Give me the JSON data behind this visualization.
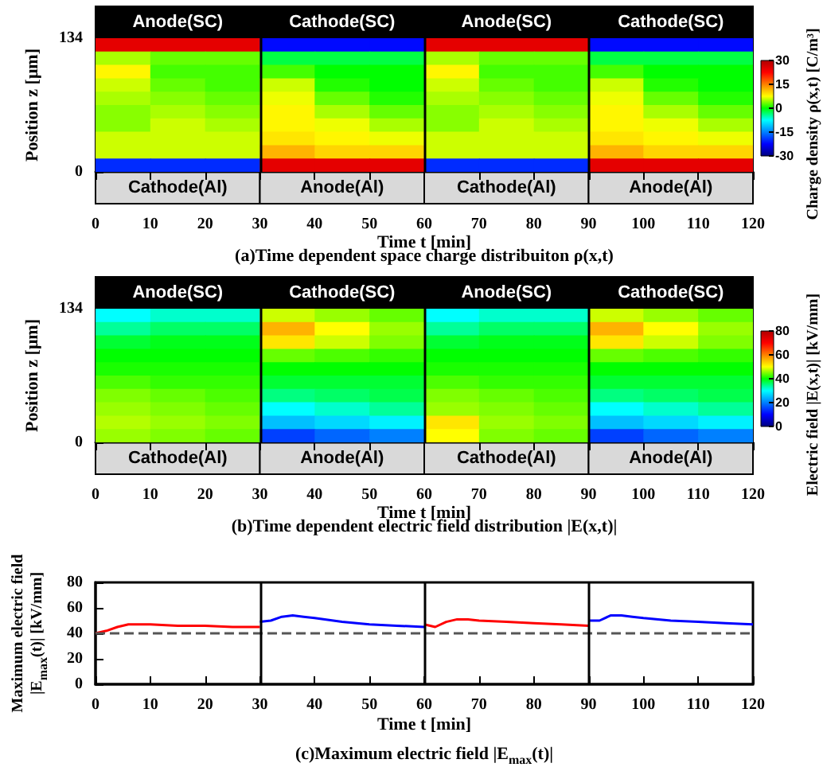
{
  "chart_data": [
    {
      "type": "heatmap",
      "title": "(a)Time dependent space charge distribuiton ρ(x,t)",
      "xlabel": "Time t [min]",
      "ylabel": "Position z [μm]",
      "clabel": "Charge density ρ(x,t) [C/m³]",
      "annotations": [
        "Anode(SC)",
        "Cathode(SC)",
        "Anode(SC)",
        "Cathode(SC)",
        "Cathode(Al)",
        "Anode(Al)",
        "Cathode(Al)",
        "Anode(Al)"
      ],
      "x": [
        5,
        15,
        25,
        35,
        45,
        55,
        65,
        75,
        85,
        95,
        105,
        115
      ],
      "cells": [
        [
          25,
          25,
          25,
          -22,
          -22,
          -22,
          25,
          25,
          25,
          -22,
          -22,
          -22
        ],
        [
          5,
          3,
          3,
          -2,
          -2,
          -2,
          5,
          3,
          3,
          -2,
          -2,
          -2
        ],
        [
          8,
          2,
          2,
          2,
          0,
          0,
          8,
          2,
          2,
          2,
          0,
          0
        ],
        [
          6,
          3,
          2,
          6,
          1,
          0,
          6,
          3,
          2,
          6,
          1,
          0
        ],
        [
          5,
          4,
          3,
          7,
          3,
          1,
          5,
          4,
          3,
          7,
          3,
          1
        ],
        [
          4,
          5,
          4,
          8,
          5,
          3,
          4,
          5,
          4,
          8,
          5,
          3
        ],
        [
          4,
          6,
          5,
          8,
          7,
          5,
          4,
          6,
          5,
          8,
          7,
          5
        ],
        [
          6,
          6,
          6,
          9,
          8,
          7,
          6,
          6,
          6,
          9,
          8,
          7
        ],
        [
          6,
          6,
          6,
          12,
          10,
          10,
          6,
          6,
          6,
          12,
          10,
          10
        ],
        [
          -20,
          -20,
          -20,
          25,
          25,
          25,
          -20,
          -20,
          -20,
          25,
          25,
          25
        ]
      ],
      "clim": [
        -30,
        30
      ],
      "cticks": [
        30,
        15,
        0,
        -15,
        -30
      ],
      "xlim": [
        0,
        120
      ],
      "xticks": [
        0,
        10,
        20,
        30,
        40,
        50,
        60,
        70,
        80,
        90,
        100,
        110,
        120
      ],
      "ylim": [
        0,
        134
      ],
      "yticks": [
        0,
        134
      ],
      "ref_lines": [
        {
          "axis": "x",
          "value": 30,
          "color": "#000000"
        },
        {
          "axis": "x",
          "value": 60,
          "color": "#000000"
        },
        {
          "axis": "x",
          "value": 90,
          "color": "#000000"
        }
      ]
    },
    {
      "type": "heatmap",
      "title": "(b)Time dependent electric field distribution |E(x,t)|",
      "xlabel": "Time t [min]",
      "ylabel": "Position z [μm]",
      "clabel": "Electric field |E(x,t)| [kV/mm]",
      "annotations": [
        "Anode(SC)",
        "Cathode(SC)",
        "Anode(SC)",
        "Cathode(SC)",
        "Cathode(Al)",
        "Anode(Al)",
        "Cathode(Al)",
        "Anode(Al)"
      ],
      "x": [
        5,
        15,
        25,
        35,
        45,
        55,
        65,
        75,
        85,
        95,
        105,
        115
      ],
      "cells": [
        [
          30,
          32,
          32,
          48,
          46,
          44,
          30,
          32,
          32,
          48,
          46,
          44
        ],
        [
          34,
          36,
          36,
          56,
          50,
          46,
          34,
          36,
          36,
          56,
          50,
          46
        ],
        [
          38,
          39,
          39,
          52,
          48,
          45,
          38,
          39,
          39,
          52,
          48,
          45
        ],
        [
          40,
          40,
          40,
          44,
          43,
          42,
          40,
          40,
          40,
          44,
          43,
          42
        ],
        [
          41,
          41,
          41,
          40,
          40,
          40,
          41,
          41,
          41,
          40,
          40,
          40
        ],
        [
          43,
          42,
          42,
          38,
          38,
          38,
          43,
          42,
          42,
          38,
          38,
          38
        ],
        [
          45,
          44,
          43,
          35,
          36,
          37,
          45,
          44,
          43,
          35,
          36,
          37
        ],
        [
          46,
          45,
          44,
          30,
          32,
          34,
          46,
          45,
          44,
          30,
          32,
          34
        ],
        [
          47,
          46,
          45,
          25,
          27,
          29,
          52,
          46,
          45,
          25,
          27,
          29
        ],
        [
          46,
          45,
          44,
          15,
          18,
          20,
          50,
          45,
          44,
          15,
          18,
          20
        ]
      ],
      "clim": [
        0,
        80
      ],
      "cticks": [
        80,
        60,
        40,
        20,
        0
      ],
      "xlim": [
        0,
        120
      ],
      "xticks": [
        0,
        10,
        20,
        30,
        40,
        50,
        60,
        70,
        80,
        90,
        100,
        110,
        120
      ],
      "ylim": [
        0,
        134
      ],
      "yticks": [
        0,
        134
      ],
      "ref_lines": [
        {
          "axis": "x",
          "value": 30,
          "color": "#000000"
        },
        {
          "axis": "x",
          "value": 60,
          "color": "#000000"
        },
        {
          "axis": "x",
          "value": 90,
          "color": "#000000"
        }
      ]
    },
    {
      "type": "line",
      "title": "(c)Maximum electric field |E$_{max}$(t)|",
      "xlabel": "Time t [min]",
      "ylabel": "Maximum electric field\n|E$_{max}$(t)| [kV/mm]",
      "marker": "none",
      "series": [
        {
          "color": "#ff0000",
          "x": [
            0,
            2,
            4,
            6,
            8,
            10,
            15,
            20,
            25,
            30
          ],
          "values": [
            40,
            42,
            45,
            47,
            47,
            47,
            46,
            46,
            45,
            45
          ]
        },
        {
          "color": "#0000ff",
          "x": [
            30,
            32,
            34,
            36,
            38,
            40,
            45,
            50,
            55,
            60
          ],
          "values": [
            49,
            50,
            53,
            54,
            53,
            52,
            49,
            47,
            46,
            45
          ]
        },
        {
          "color": "#ff0000",
          "x": [
            60,
            62,
            64,
            66,
            68,
            70,
            75,
            80,
            85,
            90
          ],
          "values": [
            47,
            45,
            49,
            51,
            51,
            50,
            49,
            48,
            47,
            46
          ]
        },
        {
          "color": "#0000ff",
          "x": [
            90,
            92,
            94,
            96,
            98,
            100,
            105,
            110,
            115,
            120
          ],
          "values": [
            50,
            50,
            54,
            54,
            53,
            52,
            50,
            49,
            48,
            47
          ]
        }
      ],
      "xlim": [
        0,
        120
      ],
      "xticks": [
        0,
        10,
        20,
        30,
        40,
        50,
        60,
        70,
        80,
        90,
        100,
        110,
        120
      ],
      "ylim": [
        0,
        80
      ],
      "yticks": [
        0,
        20,
        40,
        60,
        80
      ],
      "ref_lines": [
        {
          "axis": "y",
          "value": 40,
          "color": "#555555",
          "line_style": "dashed"
        },
        {
          "axis": "x",
          "value": 30,
          "color": "#000000"
        },
        {
          "axis": "x",
          "value": 60,
          "color": "#000000"
        },
        {
          "axis": "x",
          "value": 90,
          "color": "#000000"
        }
      ]
    }
  ]
}
